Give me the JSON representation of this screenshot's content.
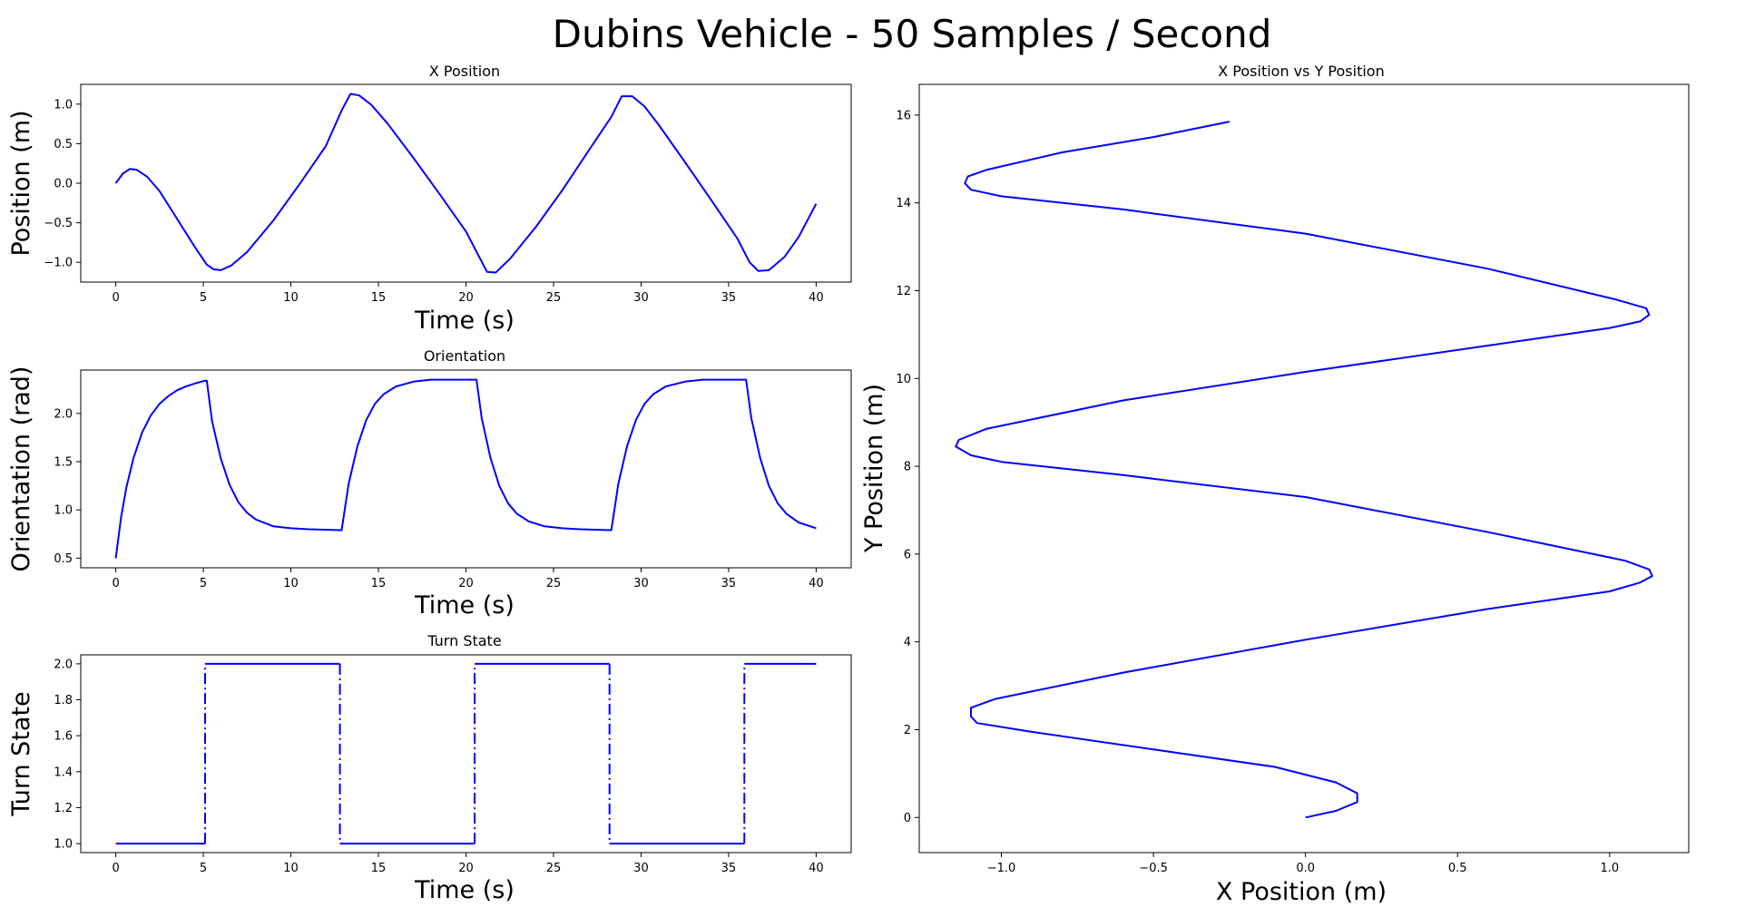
{
  "figure": {
    "title": "Dubins Vehicle - 50 Samples / Second"
  },
  "style": {
    "line_color": "#0000ff",
    "axis_color": "#000000",
    "background": "#ffffff"
  },
  "chart_data": [
    {
      "id": "xpos",
      "type": "line",
      "title": "X Position",
      "xlabel": "Time (s)",
      "ylabel": "Position (m)",
      "xlim": [
        -2,
        42
      ],
      "ylim": [
        -1.25,
        1.25
      ],
      "xticks": [
        0,
        5,
        10,
        15,
        20,
        25,
        30,
        35,
        40
      ],
      "yticks": [
        -1.0,
        -0.5,
        0.0,
        0.5,
        1.0
      ],
      "ytick_labels": [
        "−1.0",
        "−0.5",
        "0.0",
        "0.5",
        "1.0"
      ],
      "series": [
        {
          "style": "solid",
          "x": [
            0,
            0.4,
            0.8,
            1.2,
            1.8,
            2.5,
            3.5,
            4.5,
            5.2,
            5.6,
            6.0,
            6.6,
            7.5,
            9,
            10.5,
            12,
            12.9,
            13.4,
            13.9,
            14.6,
            15.5,
            17,
            18.5,
            20,
            20.8,
            21.2,
            21.7,
            22.5,
            24,
            25.5,
            27,
            28.3,
            28.9,
            29.5,
            30.2,
            31,
            32.5,
            34,
            35.5,
            36.2,
            36.7,
            37.3,
            38.2,
            39,
            40
          ],
          "y": [
            0.0,
            0.12,
            0.18,
            0.17,
            0.08,
            -0.1,
            -0.45,
            -0.8,
            -1.03,
            -1.09,
            -1.1,
            -1.04,
            -0.87,
            -0.47,
            -0.01,
            0.47,
            0.92,
            1.13,
            1.11,
            0.99,
            0.76,
            0.32,
            -0.14,
            -0.61,
            -0.95,
            -1.12,
            -1.13,
            -0.96,
            -0.55,
            -0.09,
            0.41,
            0.84,
            1.1,
            1.1,
            0.97,
            0.74,
            0.27,
            -0.21,
            -0.7,
            -1.0,
            -1.11,
            -1.1,
            -0.93,
            -0.68,
            -0.26
          ]
        }
      ]
    },
    {
      "id": "orient",
      "type": "line",
      "title": "Orientation",
      "xlabel": "Time (s)",
      "ylabel": "Orientation (rad)",
      "xlim": [
        -2,
        42
      ],
      "ylim": [
        0.4,
        2.45
      ],
      "xticks": [
        0,
        5,
        10,
        15,
        20,
        25,
        30,
        35,
        40
      ],
      "yticks": [
        0.5,
        1.0,
        1.5,
        2.0
      ],
      "ytick_labels": [
        "0.5",
        "1.0",
        "1.5",
        "2.0"
      ],
      "series": [
        {
          "style": "solid",
          "x": [
            0,
            0.3,
            0.6,
            1.0,
            1.5,
            2.0,
            2.5,
            3.0,
            3.5,
            4.0,
            4.5,
            5.1,
            5.2,
            5.5,
            6.0,
            6.5,
            7.0,
            7.5,
            8.0,
            9.0,
            10.0,
            11.0,
            12.8,
            12.9,
            13.3,
            13.8,
            14.3,
            14.8,
            15.3,
            16,
            17,
            18,
            19,
            20.5,
            20.6,
            20.9,
            21.4,
            21.9,
            22.4,
            22.9,
            23.6,
            24.5,
            25.5,
            26.5,
            28.2,
            28.3,
            28.7,
            29.2,
            29.7,
            30.2,
            30.7,
            31.4,
            32.5,
            33.5,
            34.5,
            35.9,
            36.0,
            36.3,
            36.8,
            37.3,
            37.8,
            38.3,
            39.0,
            40.0
          ],
          "y": [
            0.5,
            0.92,
            1.23,
            1.53,
            1.8,
            1.98,
            2.1,
            2.18,
            2.24,
            2.28,
            2.31,
            2.34,
            2.34,
            1.92,
            1.53,
            1.26,
            1.08,
            0.97,
            0.9,
            0.83,
            0.81,
            0.8,
            0.79,
            0.79,
            1.27,
            1.66,
            1.93,
            2.1,
            2.2,
            2.28,
            2.33,
            2.35,
            2.35,
            2.35,
            2.35,
            1.95,
            1.54,
            1.25,
            1.07,
            0.96,
            0.88,
            0.83,
            0.81,
            0.8,
            0.79,
            0.79,
            1.27,
            1.66,
            1.93,
            2.1,
            2.2,
            2.28,
            2.33,
            2.35,
            2.35,
            2.35,
            2.35,
            1.95,
            1.54,
            1.25,
            1.07,
            0.96,
            0.87,
            0.81
          ]
        }
      ]
    },
    {
      "id": "turn",
      "type": "line",
      "title": "Turn State",
      "xlabel": "Time (s)",
      "ylabel": "Turn State",
      "xlim": [
        -2,
        42
      ],
      "ylim": [
        0.95,
        2.05
      ],
      "xticks": [
        0,
        5,
        10,
        15,
        20,
        25,
        30,
        35,
        40
      ],
      "yticks": [
        1.0,
        1.2,
        1.4,
        1.6,
        1.8,
        2.0
      ],
      "ytick_labels": [
        "1.0",
        "1.2",
        "1.4",
        "1.6",
        "1.8",
        "2.0"
      ],
      "series": [
        {
          "style": "solid",
          "x": [
            0,
            5.1
          ],
          "y": [
            1,
            1
          ]
        },
        {
          "style": "dashdot",
          "x": [
            5.1,
            5.1
          ],
          "y": [
            1,
            2
          ]
        },
        {
          "style": "solid",
          "x": [
            5.1,
            12.8
          ],
          "y": [
            2,
            2
          ]
        },
        {
          "style": "dashdot",
          "x": [
            12.8,
            12.8
          ],
          "y": [
            2,
            1
          ]
        },
        {
          "style": "solid",
          "x": [
            12.8,
            20.5
          ],
          "y": [
            1,
            1
          ]
        },
        {
          "style": "dashdot",
          "x": [
            20.5,
            20.5
          ],
          "y": [
            1,
            2
          ]
        },
        {
          "style": "solid",
          "x": [
            20.5,
            28.2
          ],
          "y": [
            2,
            2
          ]
        },
        {
          "style": "dashdot",
          "x": [
            28.2,
            28.2
          ],
          "y": [
            2,
            1
          ]
        },
        {
          "style": "solid",
          "x": [
            28.2,
            35.9
          ],
          "y": [
            1,
            1
          ]
        },
        {
          "style": "dashdot",
          "x": [
            35.9,
            35.9
          ],
          "y": [
            1,
            2
          ]
        },
        {
          "style": "solid",
          "x": [
            35.9,
            40
          ],
          "y": [
            2,
            2
          ]
        }
      ]
    },
    {
      "id": "xy",
      "type": "line",
      "title": "X Position vs Y Position",
      "xlabel": "X Position (m)",
      "ylabel": "Y Position (m)",
      "xlim": [
        -1.27,
        1.26
      ],
      "ylim": [
        -0.8,
        16.7
      ],
      "xticks": [
        -1.0,
        -0.5,
        0.0,
        0.5,
        1.0
      ],
      "xtick_labels": [
        "−1.0",
        "−0.5",
        "0.0",
        "0.5",
        "1.0"
      ],
      "yticks": [
        0,
        2,
        4,
        6,
        8,
        10,
        12,
        14,
        16
      ],
      "ytick_labels": [
        "0",
        "2",
        "4",
        "6",
        "8",
        "10",
        "12",
        "14",
        "16"
      ],
      "series": [
        {
          "style": "solid",
          "x": [
            0.0,
            0.1,
            0.17,
            0.17,
            0.1,
            -0.1,
            -0.5,
            -0.9,
            -1.08,
            -1.1,
            -1.1,
            -1.02,
            -0.6,
            0.0,
            0.6,
            1.0,
            1.1,
            1.14,
            1.13,
            1.05,
            0.6,
            0.0,
            -0.6,
            -1.0,
            -1.1,
            -1.15,
            -1.14,
            -1.05,
            -0.6,
            0.0,
            0.6,
            1.0,
            1.1,
            1.13,
            1.12,
            1.02,
            0.6,
            0.0,
            -0.6,
            -1.0,
            -1.1,
            -1.12,
            -1.11,
            -1.05,
            -0.8,
            -0.5,
            -0.25
          ],
          "y": [
            0.0,
            0.15,
            0.35,
            0.55,
            0.8,
            1.15,
            1.55,
            1.95,
            2.15,
            2.3,
            2.5,
            2.7,
            3.3,
            4.05,
            4.75,
            5.15,
            5.35,
            5.5,
            5.65,
            5.85,
            6.5,
            7.3,
            7.8,
            8.1,
            8.25,
            8.45,
            8.6,
            8.85,
            9.5,
            10.15,
            10.75,
            11.15,
            11.3,
            11.45,
            11.6,
            11.8,
            12.5,
            13.3,
            13.85,
            14.15,
            14.3,
            14.45,
            14.6,
            14.75,
            15.15,
            15.5,
            15.85
          ]
        }
      ]
    }
  ]
}
